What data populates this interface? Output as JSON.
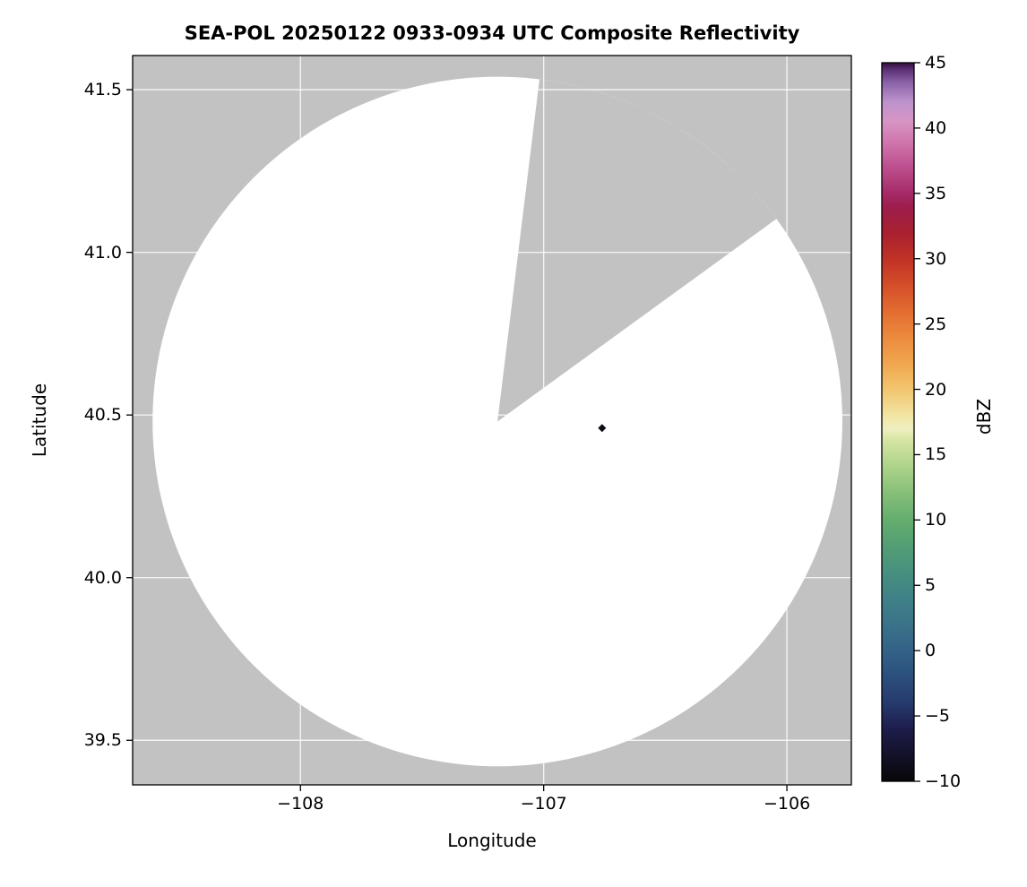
{
  "chart_data": {
    "type": "heatmap",
    "title": "SEA-POL 20250122 0933-0934 UTC Composite Reflectivity",
    "xlabel": "Longitude",
    "ylabel": "Latitude",
    "xlim": [
      -108.69,
      -105.735
    ],
    "ylim": [
      39.363,
      41.605
    ],
    "xticks": [
      -108,
      -107,
      -106
    ],
    "xtick_labels": [
      "−108",
      "−107",
      "−106"
    ],
    "yticks": [
      39.5,
      40.0,
      40.5,
      41.0,
      41.5
    ],
    "ytick_labels": [
      "39.5",
      "40.0",
      "40.5",
      "41.0",
      "41.5"
    ],
    "grid": true,
    "grid_color": "#ffffff",
    "no_data_color": "#c2c2c2",
    "coverage_color": "#ffffff",
    "frame_color": "#000000",
    "radar_coverage": {
      "center_lon": -107.19,
      "center_lat": 40.48,
      "radius_deg_lat": 1.06,
      "missing_sector_azimuth_deg": [
        7,
        54
      ]
    },
    "echoes": [
      {
        "lon": -106.76,
        "lat": 40.46,
        "value_dbz": -5,
        "color": "#0d0d15"
      }
    ],
    "colorbar": {
      "label": "dBZ",
      "min": -10,
      "max": 45,
      "ticks": [
        45,
        40,
        35,
        30,
        25,
        20,
        15,
        10,
        5,
        0,
        -5,
        -10
      ],
      "tick_labels": [
        "45",
        "40",
        "35",
        "30",
        "25",
        "20",
        "15",
        "10",
        "5",
        "0",
        "−5",
        "−10"
      ],
      "colormap_stops": [
        {
          "v": -10,
          "color": "#070709"
        },
        {
          "v": -8,
          "color": "#131129"
        },
        {
          "v": -6,
          "color": "#1d1d4c"
        },
        {
          "v": -4,
          "color": "#263a6d"
        },
        {
          "v": -2,
          "color": "#2b4f7d"
        },
        {
          "v": 0,
          "color": "#336287"
        },
        {
          "v": 2,
          "color": "#3a7389"
        },
        {
          "v": 4,
          "color": "#3f8187"
        },
        {
          "v": 6,
          "color": "#47907f"
        },
        {
          "v": 8,
          "color": "#539e74"
        },
        {
          "v": 10,
          "color": "#64ad6e"
        },
        {
          "v": 12,
          "color": "#85bf78"
        },
        {
          "v": 14,
          "color": "#abd289"
        },
        {
          "v": 16,
          "color": "#d3e4a0"
        },
        {
          "v": 17,
          "color": "#efefc0"
        },
        {
          "v": 18,
          "color": "#f2e4a3"
        },
        {
          "v": 20,
          "color": "#f2c56e"
        },
        {
          "v": 22,
          "color": "#f0a64e"
        },
        {
          "v": 24,
          "color": "#ec8a3e"
        },
        {
          "v": 26,
          "color": "#e36c31"
        },
        {
          "v": 28,
          "color": "#d44d29"
        },
        {
          "v": 30,
          "color": "#c03226"
        },
        {
          "v": 32,
          "color": "#a82030"
        },
        {
          "v": 34,
          "color": "#9d1e4d"
        },
        {
          "v": 35,
          "color": "#a62a68"
        },
        {
          "v": 37,
          "color": "#bd4f8e"
        },
        {
          "v": 39,
          "color": "#d077ae"
        },
        {
          "v": 40.5,
          "color": "#d795c4"
        },
        {
          "v": 42,
          "color": "#bd93cd"
        },
        {
          "v": 43.5,
          "color": "#8a62a8"
        },
        {
          "v": 44.5,
          "color": "#5a2e72"
        },
        {
          "v": 45,
          "color": "#2f1038"
        }
      ]
    }
  }
}
